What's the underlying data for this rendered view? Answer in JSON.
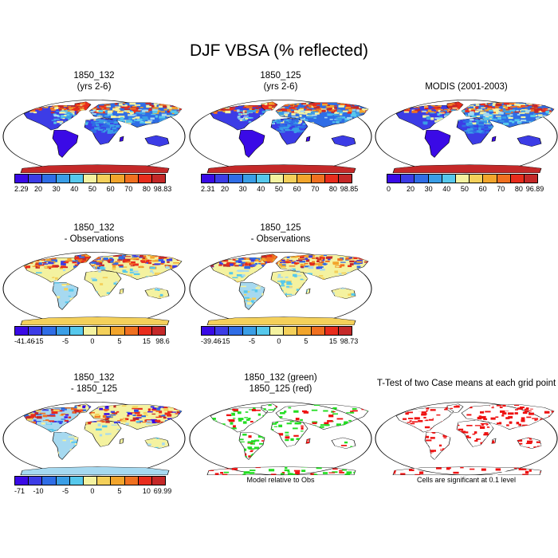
{
  "title": "DJF VBSA (% reflected)",
  "palette": [
    "#3a0ae6",
    "#3c3ce6",
    "#2f6de6",
    "#3a9ee6",
    "#56c8ec",
    "#a6d9f0",
    "#f4f2a0",
    "#f4d05a",
    "#f2a52c",
    "#f07020",
    "#e82c1c",
    "#c42828"
  ],
  "sig_colors": {
    "green": "#22dd22",
    "red": "#ee1111"
  },
  "chart_data": [
    {
      "type": "heatmap",
      "id": "p1",
      "title_lines": [
        "1850_132",
        "(yrs 2-6)"
      ],
      "colorbar": {
        "min": "2.29",
        "max": "98.83",
        "ticks": [
          "20",
          "30",
          "40",
          "50",
          "60",
          "70",
          "80"
        ]
      }
    },
    {
      "type": "heatmap",
      "id": "p2",
      "title_lines": [
        "1850_125",
        "(yrs 2-6)"
      ],
      "colorbar": {
        "min": "2.31",
        "max": "98.85",
        "ticks": [
          "20",
          "30",
          "40",
          "50",
          "60",
          "70",
          "80"
        ]
      }
    },
    {
      "type": "heatmap",
      "id": "p3",
      "title_lines": [
        "MODIS (2001-2003)"
      ],
      "colorbar": {
        "min": "0",
        "max": "96.89",
        "ticks": [
          "20",
          "30",
          "40",
          "50",
          "60",
          "70",
          "80"
        ]
      }
    },
    {
      "type": "heatmap",
      "id": "p4",
      "title_lines": [
        "1850_132",
        "- Observations"
      ],
      "colorbar": {
        "min": "-41.46",
        "max": "98.6",
        "ticks": [
          "-15",
          "-5",
          "0",
          "5",
          "15"
        ]
      }
    },
    {
      "type": "heatmap",
      "id": "p5",
      "title_lines": [
        "1850_125",
        "- Observations"
      ],
      "colorbar": {
        "min": "-39.46",
        "max": "98.73",
        "ticks": [
          "-15",
          "-5",
          "0",
          "5",
          "15"
        ]
      }
    },
    {
      "type": "heatmap",
      "id": "p6",
      "title_lines": [
        "1850_132",
        "- 1850_125"
      ],
      "colorbar": {
        "min": "-71",
        "max": "69.99",
        "ticks": [
          "-10",
          "-5",
          "0",
          "5",
          "10"
        ]
      }
    },
    {
      "type": "heatmap",
      "id": "p7",
      "title_lines": [
        "1850_132 (green)",
        "1850_125 (red)"
      ],
      "note": "Model relative to Obs"
    },
    {
      "type": "heatmap",
      "id": "p8",
      "title_lines": [
        "T-Test of two Case means at each grid point"
      ],
      "note": "Cells are significant at 0.1 level"
    }
  ]
}
